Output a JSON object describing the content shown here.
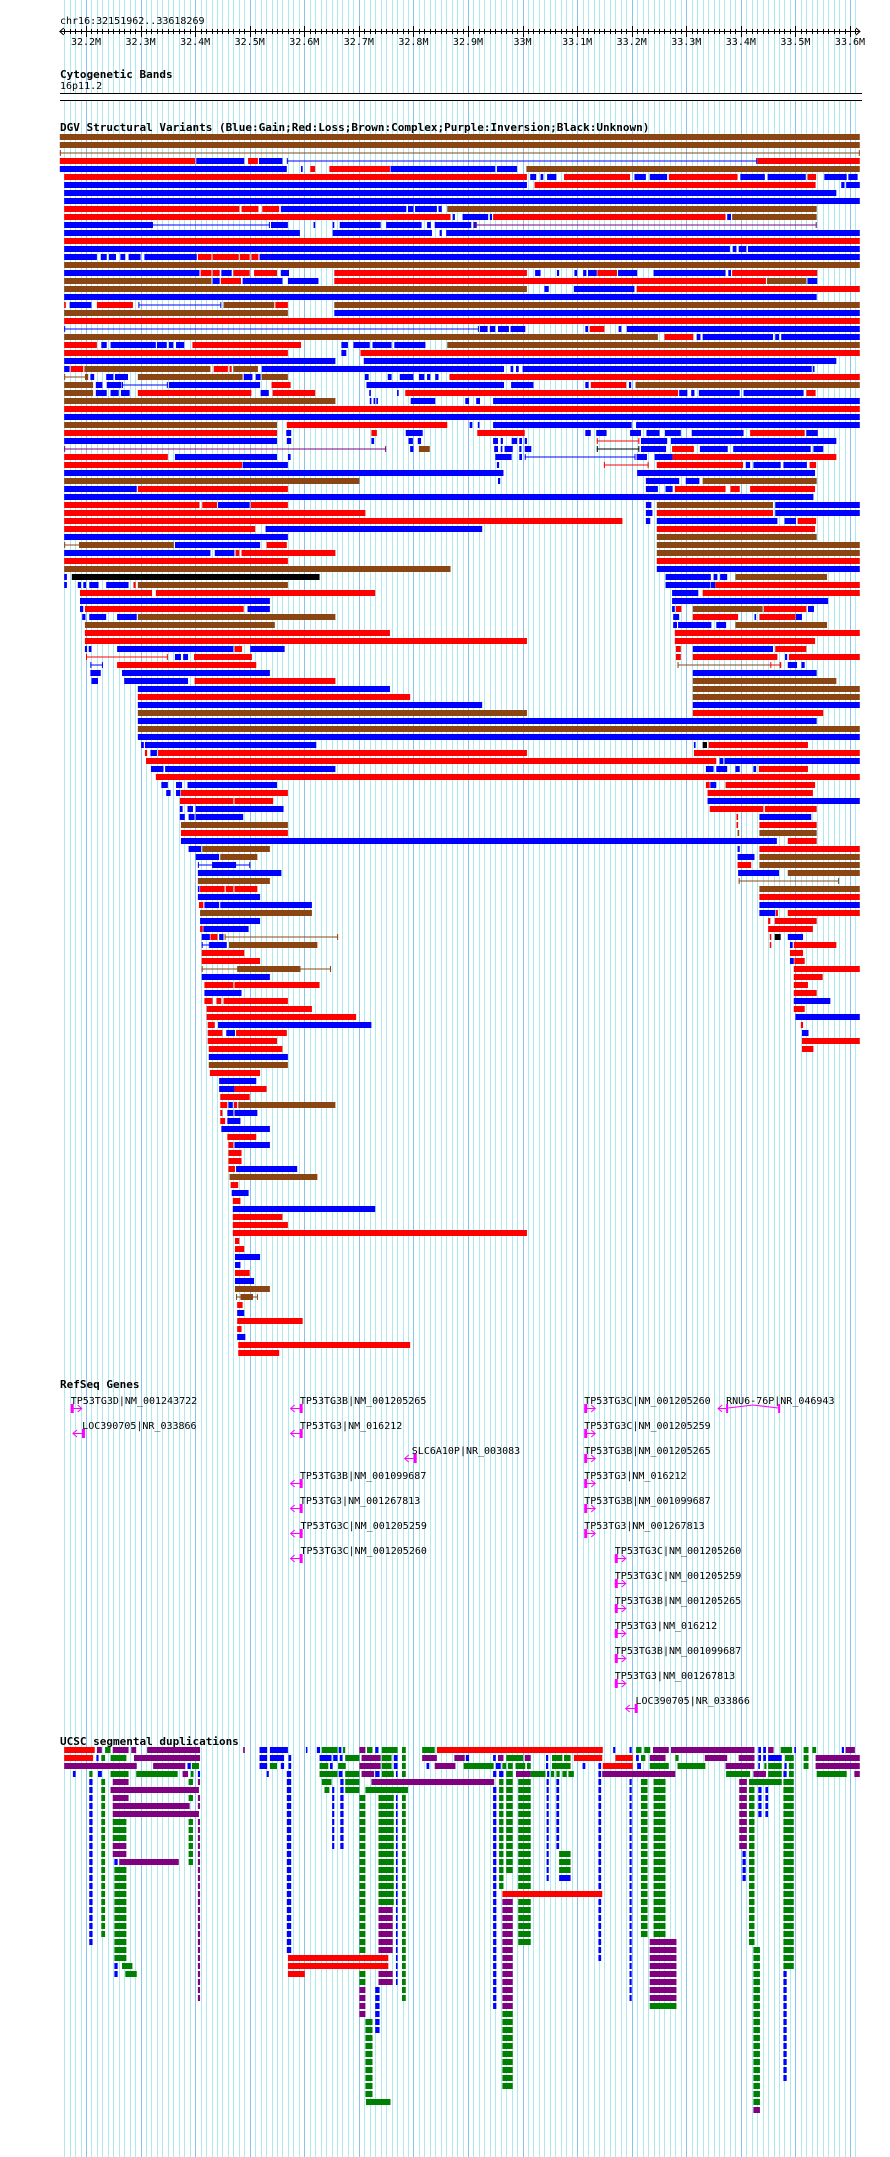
{
  "header": {
    "location": "chr16:32151962..33618269"
  },
  "view": {
    "start_mb": 32.151962,
    "end_mb": 33.618269
  },
  "ruler": {
    "labels": [
      {
        "mb": 32.2,
        "text": "32.2M"
      },
      {
        "mb": 32.3,
        "text": "32.3M"
      },
      {
        "mb": 32.4,
        "text": "32.4M"
      },
      {
        "mb": 32.5,
        "text": "32.5M"
      },
      {
        "mb": 32.6,
        "text": "32.6M"
      },
      {
        "mb": 32.7,
        "text": "32.7M"
      },
      {
        "mb": 32.8,
        "text": "32.8M"
      },
      {
        "mb": 32.9,
        "text": "32.9M"
      },
      {
        "mb": 33.0,
        "text": "33M"
      },
      {
        "mb": 33.1,
        "text": "33.1M"
      },
      {
        "mb": 33.2,
        "text": "33.2M"
      },
      {
        "mb": 33.3,
        "text": "33.3M"
      },
      {
        "mb": 33.4,
        "text": "33.4M"
      },
      {
        "mb": 33.5,
        "text": "33.5M"
      },
      {
        "mb": 33.6,
        "text": "33.6M"
      }
    ]
  },
  "colors": {
    "r": "#ff0000",
    "b": "#0000ff",
    "n": "#8b4513",
    "p": "#800080",
    "k": "#000000",
    "g": "#008000",
    "gene": "#ff00ff",
    "grid_minor": "#aee9ee",
    "grid_major": "#88c4ec"
  },
  "tracks": {
    "cytoband": {
      "title": "Cytogenetic Bands",
      "band": "16p11.2"
    },
    "dgv": {
      "title": "DGV Structural Variants (Blue:Gain;Red:Loss;Brown:Complex;Purple:Inversion;Black:Unknown)",
      "rows": [
        "n:32.152-33.618",
        "n:32.152-33.618",
        "nL:32.152-33.618",
        "r:32.152-32.400 b:32.402-32.490 r:32.497-32.515 b:32.517-32.560 bL:32.568-33.430 r:33.430-33.618",
        "b:32.152-32.568 b:32.594-32.597 r:32.611-32.620 r:32.646-32.757 b:32.758-32.950 b:32.953-32.990 n:33.007-33.618",
        "r:32.160-33.008 b:33.014-33.025 b:33.033-33.038 b:33.045-33.062 r:33.076-33.197 b:33.205-33.226 b:33.233-33.265 r:33.268-33.394 b:33.399-33.444 b:33.449-33.519 r:33.522-33.538 b:33.553-33.594 b:33.597-33.614",
        "b:32.160-33.008 r:33.022-33.537 b:33.584-33.590 b:33.593-33.618",
        "b:32.160-33.575",
        "b:32.160-33.618",
        "r:32.160-32.481 r:32.485-32.516 r:32.523-32.554 b:32.557-32.787 b:32.790-32.800 b:32.803-32.843 b:32.846-32.852 n:32.862-33.539",
        "r:32.160-32.868 b:32.872-32.876 b:32.890-32.937 b:32.940-32.944 r:32.946-33.372 b:33.375-33.382 n:33.384-33.539",
        "b:32.160-32.321 bL:32.321-32.537 b:32.539-32.570 b:32.617-32.620 b:32.652-32.655 b:32.665-32.740 b:32.750-32.815 b:32.825-32.832 b:32.839-32.906 b:32.910-32.916 pL:32.912-33.539",
        "b:32.160-32.592 b:32.652-32.834 b:32.848-32.852 b:32.860-33.618",
        "r:32.160-33.618",
        "b:32.160-33.380 b:33.385-33.392 b:33.396-33.410 b:33.413-33.618",
        "b:32.160-32.220 b:32.227-32.238 b:32.242-32.255 b:32.263-32.272 b:32.278-32.300 b:32.307-32.403 r:32.405-32.430 r:32.432-32.480 r:32.482-32.500 r:32.503-32.516 b:32.518-33.618",
        "n:32.160-33.618",
        "b:32.160-32.408 r:32.410-32.430 r:32.432-32.445 b:32.448-32.467 r:32.470-32.500 r:32.508-32.550 b:32.557-32.572 r:32.655-33.008 b:33.023-33.033 b:33.063-33.067 b:33.095-33.100 b:33.111-33.117 b:33.120-33.136 r:33.137-33.173 b:33.175-33.210 b:33.240-33.372 b:33.377-33.382 r:33.384-33.540",
        "n:32.160-32.430 b:32.432-32.445 r:32.447-32.484 b:32.487-32.560 b:32.570-32.626 r:32.655-33.446 n:33.448-33.520 b:33.522-33.540",
        "n:32.160-33.008 b:33.040-33.048 b:33.094-33.205 r:33.209-33.618",
        "b:32.160-33.539",
        "r:32.160-32.163 b:32.170-32.210 r:32.220-32.286 bL:32.296-32.448 n:32.452-32.545 r:32.547-32.570 n:32.655-33.618",
        "n:32.160-32.570 b:32.655-33.618",
        "r:32.160-33.618",
        "bL:32.160-32.920 b:32.922-32.936 b:32.940-32.950 b:32.955-32.975 b:32.978-33.005 b:33.115-33.120 r:33.123-33.150 b:33.176-33.181 b:33.191-33.618",
        "n:32.160-33.248 r:33.260-33.313 b:33.319-33.326 b:33.330-33.459 b:33.463-33.470 b:33.474-33.618",
        "r:32.160-32.220 b:32.228-32.238 b:32.245-32.328 b:32.330-32.348 b:32.352-32.360 b:32.365-32.380 r:32.395-32.594 b:32.668-32.680 b:32.690-32.720 b:32.725-32.760 b:32.765-32.822 n:32.862-33.618",
        "r:32.160-32.570 b:32.668-32.677 r:32.703-33.618",
        "b:32.160-32.657 b:32.709-33.575",
        "b:32.160-32.170 r:32.172-32.195 n:32.197-32.428 r:32.434-32.460 r:32.463-32.467 n:32.470-32.515 b:32.522-32.966 b:32.978-32.983 b:32.988-32.993 b:33.000-33.530 b:33.532-33.535",
        "nL:32.160-32.200 n:32.200-32.204 b:32.208-32.215 b:32.237-32.250 b:32.253-32.277 n:32.295-32.487 b:32.489-32.505 b:32.511-32.520 n:32.522-32.570 b:32.711-32.718 b:32.753-32.760 b:32.775-32.800 b:32.810-32.820 b:32.825-32.831 b:32.840-32.846 r:32.866-33.618",
        "n:32.160-32.213 b:32.218-32.230 b:32.238-32.265 bL:32.266-32.350 b:32.352-32.519 r:32.540-32.575 b:32.714-32.966 b:32.979-33.020 b:33.115-33.121 r:33.125-33.190 b:33.195-33.199 n:33.207-33.618",
        "n:32.160-32.213 b:32.218-32.238 b:32.245-32.260 b:32.264-32.280 r:32.295-32.503 b:32.520-32.535 r:32.542-32.620 b:32.719-32.722 b:32.770-32.773 r:32.785-33.285 b:33.287-33.302 b:33.309-33.315 b:33.323-33.398 b:33.405-33.515 r:33.520-33.537",
        "n:32.160-32.657 b:32.720-32.723 b:32.727-32.730 b:32.732-32.735 b:32.795-32.840 b:32.895-32.902 b:32.915-32.922 b:32.946-33.618",
        "r:32.160-33.618",
        "b:32.160-33.618",
        "n:32.160-32.550 r:32.568-32.862 b:32.903-32.908 b:32.918-32.921 b:32.946-33.200 b:33.208-33.618",
        "r:32.160-32.550 b:32.567-32.576 r:32.723-32.733 b:32.786-32.817 r:32.917-33.004 b:33.115-33.125 b:33.135-33.154 b:33.197-33.217 b:33.227-33.251 b:33.261-33.290 b:33.310-33.405 r:33.417-33.517 b:33.520-33.541",
        "b:32.160-32.550 b:32.568-32.576 b:32.723-32.728 b:32.791-32.799 b:32.808-32.814 b:32.946-32.955 b:32.960-32.964 b:32.980-32.990 b:32.994-32.999 b:33.004-33.008 rL:33.136-33.214 b:33.217-33.265 b:33.272-33.575",
        "pL:32.160-32.750 b:32.794-32.800 n:32.810-32.830 b:32.948-32.955 b:32.960-32.963 b:32.967-32.982 b:32.994-32.998 b:33.004-33.016 kL:33.136-33.214 b:33.217-33.263 r:33.274-33.314 b:33.325-33.376 b:33.386-33.528 b:33.533-33.551",
        "r:32.160-32.350 b:32.363-32.550 b:32.570-32.575 b:32.950-32.980 b:32.994-32.999 bL:33.004-33.207 b:33.209-33.228 b:33.242-33.275 r:33.275-33.575",
        "r:32.160-32.486 b:32.487-32.570 b:32.953-32.957 rL:33.149-33.231 r:33.246-33.404 b:33.409-33.417 b:33.423-33.473 b:33.478-33.521 r:33.526-33.538",
        "b:32.160-32.965 b:33.210-33.536",
        "n:32.160-32.701 b:32.955-32.959 b:33.226-33.287 b:33.299-33.324 n:33.330-33.539",
        "b:32.160-32.293 r:32.295-32.570 b:33.226-33.248 b:33.262-33.275 r:33.279-33.372 r:33.381-33.398 r:33.417-33.536",
        "b:32.160-33.533",
        "r:32.160-32.408 r:32.413-32.440 b:32.442-32.500 r:32.502-32.570 b:33.226-33.236 n:33.246-33.459 b:33.463-33.618",
        "r:32.160-32.712 b:33.226-33.238 r:33.246-33.459 b:33.463-33.618",
        "r:32.160-33.183 b:33.226-33.234 b:33.246-33.467 b:33.480-33.501 r:33.504-33.538",
        "r:32.160-32.510 b:32.529-32.926 r:33.246-33.536",
        "b:32.160-32.570 n:33.246-33.539",
        "nL:32.160-32.189 n:32.189-32.361 b:32.363-32.519 r:32.531-32.568 n:33.246-33.618",
        "b:32.160-32.428 b:32.436-32.472 r:32.474-32.481 r:32.485-32.657 n:33.246-33.618",
        "r:32.160-32.570 r:33.246-33.618",
        "n:32.160-32.868 b:33.246-33.618",
        "b:32.160-32.165 k:32.174-32.628 b:33.262-33.345 b:33.350-33.357 b:33.362-33.375 n:33.390-33.558",
        "b:32.160-32.165 b:32.185-32.191 b:32.195-32.200 b:32.206-32.223 b:32.237-32.278 r:32.287-32.291 n:32.295-32.570 b:33.262-33.344 b:33.345-33.353 r:33.353-33.618",
        "r:32.189-32.321 r:32.328-32.730 b:33.274-33.322 r:33.330-33.618",
        "b:32.189-32.537 b:33.274-33.560",
        "b:32.189-32.195 r:32.198-32.489 b:32.496-32.537 b:33.274-33.279 r:33.281-33.291 n:33.312-33.440 r:33.442-33.520 b:33.523-33.534",
        "b:32.193-32.199 b:32.206-32.237 b:32.257-32.293 n:32.295-32.657 b:33.276-33.287 r:33.312-33.395 b:33.425-33.428 r:33.434-33.500 b:33.501-33.512",
        "n:32.198-32.546 b:33.276-33.283 b:33.285-33.346 b:33.355-33.373 n:33.390-33.558",
        "r:32.198-32.757 r:33.279-33.618",
        "r:32.198-33.008 r:33.279-33.536",
        "b:32.198-32.202 b:32.205-32.210 b:32.257-32.470 r:32.472-32.486 b:32.501-32.564 r:33.281-33.290 b:33.312-33.459 r:33.463-33.520",
        "rL:32.200-32.350 b:32.363-32.374 b:32.378-32.387 r:32.398-32.504 r:33.281-33.290 r:33.312-33.467 b:33.481-33.485 r:33.488-33.618",
        "bL:32.208-32.231 r:32.257-32.512 nL:33.284-33.473 rL:33.454-33.474 b:33.486-33.503 b:33.511-33.517",
        "b:32.208-32.227 b:32.266-32.537 b:33.312-33.539",
        "b:32.210-32.222 b:32.270-32.387 r:32.399-32.657 n:33.312-33.575",
        "b:32.295-32.757 n:33.312-33.618",
        "r:32.295-32.794 n:33.312-33.618",
        "b:32.295-32.926 b:33.312-33.618",
        "n:32.295-33.008 r:33.312-33.551",
        "b:32.295-33.539",
        "n:32.295-33.618",
        "b:32.295-33.618",
        "b:32.301-32.306 b:32.308-32.622 b:33.314-33.317 k:33.330-33.338 r:33.341-33.523",
        "r:32.308-32.312 b:32.318-32.330 r:32.332-33.008 r:33.314-33.618",
        "r:32.310-33.355 b:33.361-33.368 b:33.370-33.618",
        "b:32.319-32.342 b:32.345-32.657 b:33.336-33.350 b:33.355-33.375 b:33.390-33.398 b:33.423-33.428 r:33.433-33.523",
        "r:32.328-33.618",
        "b:32.338-32.350 b:32.365-32.376 b:32.386-32.550 r:33.336-33.343 b:33.344-33.355 r:33.372-33.536",
        "b:32.347-32.355 b:32.365-32.373 r:32.374-32.570 r:33.339-33.532",
        "r:32.372-32.470 r:32.472-32.543 b:33.339-33.618",
        "b:32.372-32.377 b:32.386-32.396 b:32.401-32.562 r:33.343-33.441 r:33.444-33.539",
        "b:32.372-32.381 b:32.388-32.399 b:32.401-32.488 r:33.392-33.395 b:33.434-33.529",
        "n:32.374-32.570 r:33.392-33.395 r:33.434-33.539",
        "r:32.374-32.570 n:33.394-33.397 n:33.434-33.539",
        "b:32.374-33.459 b:33.459-33.466 r:33.486-33.539",
        "b:32.388-32.411 n:32.413-32.537 b:33.394-33.398 r:33.434-33.618",
        "b:32.401-32.444 n:32.446-32.514 b:33.394-33.425 n:33.434-33.618",
        "bL:32.405-32.501 b:32.431-32.475 r:33.394-33.419 n:33.434-33.618",
        "b:32.405-32.558 b:33.395-33.470 n:33.486-33.618",
        "n:32.405-32.537 nL:33.396-33.580",
        "b:32.405-32.408 r:32.409-32.454 r:32.456-32.470 r:32.472-32.514 n:33.434-33.618",
        "b:32.405-32.519 r:33.434-33.618",
        "r:32.407-32.415 b:32.417-32.444 b:32.446-32.614 b:33.434-33.618",
        "n:32.409-32.614 b:33.434-33.463 r:33.464-33.468 r:33.486-33.618",
        "b:32.409-32.519 r:33.450-33.454 r:33.462-33.539",
        "r:32.409-32.414 b:32.415-32.498 r:33.450-33.532",
        "b:32.412-32.427 r:32.428-32.441 b:32.444-32.452 nL:32.454-32.662 r:33.453-33.455 k:33.462-33.473 b:33.486-33.514",
        "bL:32.412-32.427 b:32.427-32.458 n:32.462-32.624 r:33.453-33.455 b:33.490-33.495 r:33.497-33.575",
        "r:32.412-32.490 r:33.490-33.514",
        "r:32.412-32.519 b:33.490-33.497 r:33.498-33.517",
        "nL:32.412-32.649 n:32.477-32.593 r:33.497-33.618",
        "b:32.412-32.537 r:33.497-33.550",
        "r:32.417-32.470 r:32.472-32.628 r:33.497-33.523",
        "b:32.417-32.485 r:33.497-33.539",
        "r:32.417-32.432 r:32.439-32.448 r:32.452-32.570 b:33.497-33.564",
        "r:32.421-32.614 r:33.497-33.517",
        "r:32.421-32.695 b:33.500-33.618",
        "r:32.423-32.436 b:32.442-32.723 r:33.510-33.514",
        "r:32.423-32.450 b:32.457-32.473 r:32.475-32.568 b:33.512-33.524",
        "r:32.423-32.550 r:33.512-33.618",
        "r:32.425-32.560 r:33.512-33.533",
        "b:32.425-32.570",
        "n:32.425-32.570",
        "r:32.427-32.519",
        "b:32.444-32.512",
        "b:32.444-32.472 r:32.472-32.531",
        "r:32.446-32.500",
        "r:32.446-32.459 b:32.461-32.469 r:32.471-32.477 n:32.479-32.657",
        "r:32.446-32.450 b:32.459-32.470 b:32.472-32.514",
        "r:32.446-32.455 b:32.459-32.483",
        "b:32.448-32.537",
        "r:32.459-32.512",
        "r:32.461-32.470 b:32.472-32.537",
        "r:32.461-32.485",
        "r:32.461-32.485",
        "r:32.461-32.473 b:32.475-32.587",
        "n:32.463-32.624",
        "r:32.465-32.479",
        "b:32.467-32.498",
        "r:32.469-32.483",
        "b:32.469-32.730",
        "r:32.469-32.560",
        "r:32.469-32.570",
        "r:32.469-33.008",
        "r:32.473-32.481",
        "r:32.473-32.490",
        "b:32.473-32.519",
        "b:32.473-32.483",
        "r:32.473-32.500",
        "b:32.473-32.508",
        "n:32.473-32.537",
        "nL:32.475-32.515 n:32.483-32.506",
        "r:32.477-32.487",
        "b:32.477-32.490",
        "r:32.477-32.597",
        "r:32.477-32.485",
        "b:32.477-32.492",
        "r:32.479-32.794",
        "r:32.479-32.554"
      ]
    },
    "refseq": {
      "title": "RefSeq Genes",
      "genes": [
        {
          "label": "TP53TG3D|NM_001243722",
          "start": 32.172,
          "end": 32.176,
          "strand": "+"
        },
        {
          "label": "LOC390705|NR_033866",
          "start": 32.193,
          "end": 32.198,
          "strand": "-"
        },
        {
          "label": "TP53TG3B|NM_001205265",
          "start": 32.592,
          "end": 32.597,
          "strand": "-"
        },
        {
          "label": "TP53TG3|NM_016212",
          "start": 32.592,
          "end": 32.597,
          "strand": "-"
        },
        {
          "label": "SLC6A10P|NR_003083",
          "start": 32.797,
          "end": 32.806,
          "strand": "-"
        },
        {
          "label": "TP53TG3B|NM_001099687",
          "start": 32.592,
          "end": 32.597,
          "strand": "-"
        },
        {
          "label": "TP53TG3|NM_001267813",
          "start": 32.592,
          "end": 32.597,
          "strand": "-"
        },
        {
          "label": "TP53TG3C|NM_001205259",
          "start": 32.593,
          "end": 32.597,
          "strand": "-"
        },
        {
          "label": "TP53TG3C|NM_001205260",
          "start": 32.593,
          "end": 32.597,
          "strand": "-"
        },
        {
          "label": "TP53TG3C|NM_001205260",
          "start": 33.113,
          "end": 33.118,
          "strand": "+"
        },
        {
          "label": "RNU6-76P|NR_046943",
          "start": 33.373,
          "end": 33.472,
          "strand": "-",
          "spliced": true
        },
        {
          "label": "TP53TG3C|NM_001205259",
          "start": 33.113,
          "end": 33.118,
          "strand": "+"
        },
        {
          "label": "TP53TG3B|NM_001205265",
          "start": 33.113,
          "end": 33.118,
          "strand": "+"
        },
        {
          "label": "TP53TG3|NM_016212",
          "start": 33.113,
          "end": 33.118,
          "strand": "+"
        },
        {
          "label": "TP53TG3B|NM_001099687",
          "start": 33.113,
          "end": 33.118,
          "strand": "+"
        },
        {
          "label": "TP53TG3|NM_001267813",
          "start": 33.113,
          "end": 33.118,
          "strand": "+"
        },
        {
          "label": "TP53TG3C|NM_001205260",
          "start": 33.169,
          "end": 33.173,
          "strand": "+"
        },
        {
          "label": "TP53TG3C|NM_001205259",
          "start": 33.169,
          "end": 33.173,
          "strand": "+"
        },
        {
          "label": "TP53TG3B|NM_001205265",
          "start": 33.169,
          "end": 33.173,
          "strand": "+"
        },
        {
          "label": "TP53TG3|NM_016212",
          "start": 33.169,
          "end": 33.173,
          "strand": "+"
        },
        {
          "label": "TP53TG3B|NM_001099687",
          "start": 33.169,
          "end": 33.173,
          "strand": "+"
        },
        {
          "label": "TP53TG3|NM_001267813",
          "start": 33.169,
          "end": 33.173,
          "strand": "+"
        },
        {
          "label": "LOC390705|NR_033866",
          "start": 33.207,
          "end": 33.211,
          "strand": "-"
        }
      ]
    },
    "segdups": {
      "title": "UCSC segmental duplications",
      "top_rows": [
        "r:32.160-32.216 p:32.220-32.229 g:32.235-32.245 p:32.249-32.278 p:32.283-32.292 p:32.312-32.409 p:32.488-32.491 b:32.518-32.532 b:32.537-32.570 b:32.603-32.605 b:32.623-32.629 g:32.632-32.661 b:32.663-32.668 g:32.671-32.675 p:32.701-32.712 g:32.715-32.725 b:32.730-32.736 g:32.742-32.771 g:32.779-32.786 g:32.816-32.839 r:32.843-33.147 b:33.166-33.170 b:33.196-33.200 g:33.208-33.218 g:33.223-33.234 p:33.239-33.268 p:33.272-33.425 b:33.432-33.437 b:33.441-33.446 p:33.450-33.460 g:33.473-33.494 b:33.498-33.501 g:33.515-33.524 g:33.531-33.538 b:33.585-33.589 p:33.592-33.609",
        "r:32.160-32.213 b:32.219-32.223 g:32.228-32.235 g:32.245-32.274 p:32.288-32.409 b:32.518-32.532 b:32.537-32.563 b:32.571-32.576 b:32.628-32.650 b:32.653-32.661 b:32.665-32.670 g:32.675-32.701 p:32.705-32.740 g:32.742-32.760 b:32.764-32.771 g:32.779-32.786 p:32.816-32.843 p:32.875-32.894 b:32.896-32.902 b:32.946-32.951 p:32.955-32.965 g:32.970-33.001 p:33.004-33.015 b:33.043-33.047 g:33.054-33.073 g:33.076-33.088 r:33.094-33.146 r:33.170-33.202 b:33.208-33.213 g:33.217-33.225 p:33.233-33.262 g:33.280-33.286 p:33.334-33.375 p:33.396-33.425 b:33.432-33.437 b:33.441-33.446 b:33.450-33.475 g:33.481-33.497 g:33.515-33.524 p:33.537-33.618",
        "p:32.160-32.293 p:32.323-32.382 b:32.386-32.392 g:32.394-32.407 b:32.518-32.532 g:32.537-32.550 b:32.557-32.563 b:32.571-32.576 g:32.628-32.644 b:32.647-32.652 g:32.662-32.676 p:32.701-32.740 g:32.742-32.760 b:32.764-32.771 g:32.779-32.786 b:32.824-32.829 p:32.839-32.877 g:32.892-32.947 b:32.951-32.960 g:32.963-32.970 g:32.973-32.982 g:32.987-33.005 g:33.008-33.015 b:33.043-33.047 g:33.054-33.088 b:33.110-33.115 b:33.139-33.144 r:33.147-33.202 b:33.210-33.217 g:33.233-33.268 g:33.284-33.335 p:33.372-33.425 b:33.432-33.435 g:33.443-33.447 g:33.450-33.475 b:33.480-33.484 g:33.488-33.497 g:33.515-33.524 p:33.537-33.618",
        "b:32.176-32.181 g:32.206-32.212 b:32.222-32.229 g:32.245-32.278 g:32.292-32.368 p:32.377-32.387 g:32.392-32.397 b:32.405-32.409 b:32.531-32.535 b:32.568-32.576 g:32.628-32.661 b:32.663-32.670 g:32.675-32.701 p:32.705-32.728 b:32.730-32.738 g:32.742-32.764 b:32.768-32.771 g:32.779-32.786 b:32.946-32.952 b:32.957-32.965 g:32.970-32.982 p:32.988-33.015 g:33.015-33.042 b:33.045-33.049 g:33.052-33.058 g:33.062-33.068 g:33.073-33.081 g:33.084-33.094 b:33.139-33.144 p:33.146-33.280 g:33.373-33.417 p:33.423-33.435 p:33.435-33.446 g:33.450-33.475 b:33.478-33.484 g:33.488-33.497 g:33.539-33.594 p:33.608-33.618"
      ],
      "features": "p:32.723-32.948 p:32.249-32.278 p:32.245-32.407 p:32.249-32.278 p:32.249-32.390 p:32.249-32.407 g:32.249-32.274*3 p:32.249-32.274*2 p:32.261-32.370 g:32.252-32.274*12 b:32.252-32.258*3 g:32.266-32.285 g:32.272-32.293 b:32.206-32.212*21 g:32.228-32.235*20 g:32.388-32.396*8 p:32.405-32.409*26 g:32.712-32.790 g:32.632-32.650 g:32.637-32.646 b:32.568-32.576*22 b:32.651-32.655*8 b:32.666-32.672*9 g:32.675-32.701*2 r:32.570-32.754*2 r:32.570-32.601 g:32.701-32.712*22 p:32.701-32.712*4 g:32.736-32.764*14 p:32.736-32.762*8 b:32.730-32.738*6 b:32.768-32.771*24 g:32.779-32.786*26 g:32.712-32.725*10 g:32.713-32.758 b:32.946-32.952*28 g:32.957-32.965*14 g:32.970-32.982*12 r:32.963-33.146 p:32.963-32.982*14 g:32.963-32.982*10 g:32.992-33.015*20 b:33.044-33.048*13 b:33.062-33.067*9 g:33.067-33.088*3 b:33.067-33.088 b:33.139-33.144*22 b:33.196-33.200*28 g:33.217-33.229*20 g:33.240-33.262*20 p:33.233-33.282*8 g:33.233-33.282 p:33.397-33.411*9 g:33.415-33.475 b:33.403-33.409*4 g:33.415-33.425*20 g:33.423-33.435*20 p:33.423-33.435 b:33.432-33.438*4 b:33.445-33.450*4 g:33.478-33.497*24 b:33.478-33.484*14"
    }
  }
}
